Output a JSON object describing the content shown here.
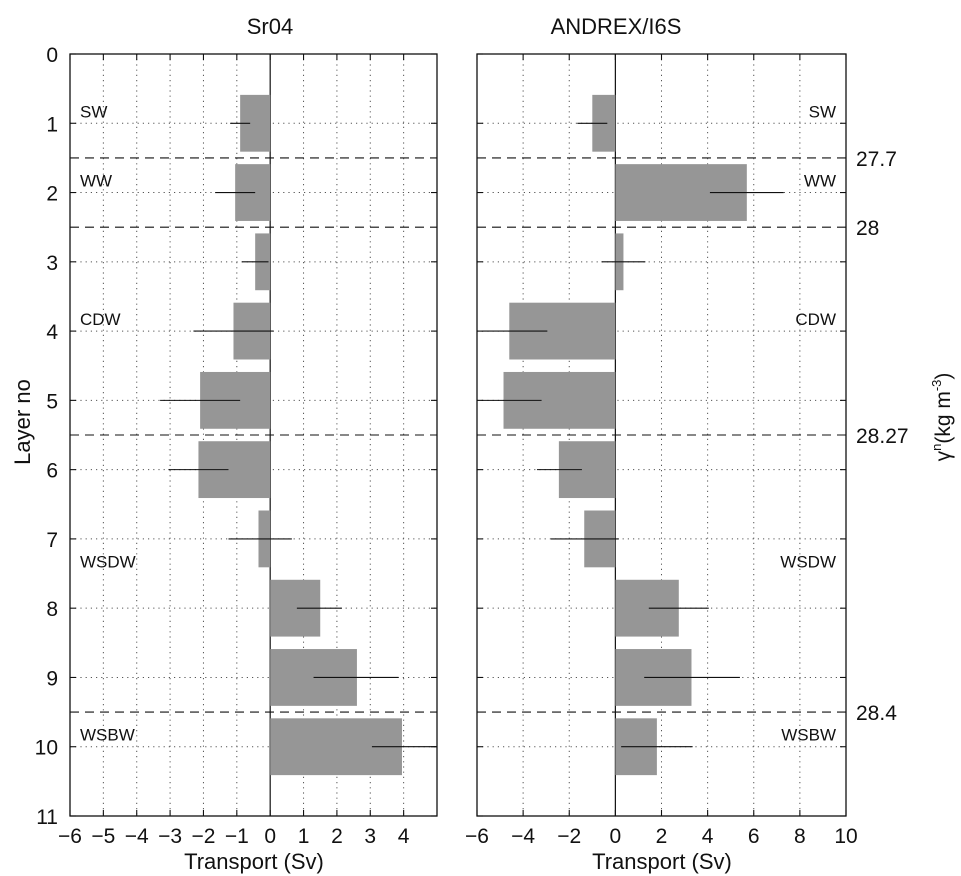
{
  "figure": {
    "ylabel": "Layer no",
    "right_label_prefix": "γ",
    "right_label_sup": "n",
    "right_label_text": "(kg m",
    "right_label_sup2": "-3",
    "right_label_close": ")"
  },
  "style": {
    "bar_color": "#969696",
    "axis_color": "#111111",
    "grid_color": "#555555"
  },
  "chart_data": [
    {
      "type": "bar",
      "orientation": "horizontal",
      "title": "Sr04",
      "xlabel": "Transport (Sv)",
      "ylabel": "Layer no",
      "xlim": [
        -6,
        5
      ],
      "xticks": [
        -6,
        -5,
        -4,
        -3,
        -2,
        -1,
        0,
        1,
        2,
        3,
        4
      ],
      "ylim": [
        0,
        11
      ],
      "yticks": [
        0,
        1,
        2,
        3,
        4,
        5,
        6,
        7,
        8,
        9,
        10,
        11
      ],
      "y_reversed": true,
      "grid": true,
      "layers": [
        1,
        2,
        3,
        4,
        5,
        6,
        7,
        8,
        9,
        10
      ],
      "values": [
        -0.9,
        -1.05,
        -0.45,
        -1.1,
        -2.1,
        -2.15,
        -0.35,
        1.5,
        2.6,
        3.95
      ],
      "error_ranges": [
        [
          -1.2,
          -0.6
        ],
        [
          -1.65,
          -0.45
        ],
        [
          -0.85,
          -0.05
        ],
        [
          -2.3,
          0.1
        ],
        [
          -3.3,
          -0.9
        ],
        [
          -3.05,
          -1.25
        ],
        [
          -1.25,
          0.65
        ],
        [
          0.8,
          2.15
        ],
        [
          1.3,
          3.85
        ],
        [
          3.05,
          5.0
        ]
      ],
      "water_mass_labels": [
        {
          "label": "SW",
          "layer": 1
        },
        {
          "label": "WW",
          "layer": 2
        },
        {
          "label": "CDW",
          "layer": 4
        },
        {
          "label": "WSDW",
          "layer": 7.5
        },
        {
          "label": "WSBW",
          "layer": 10
        }
      ],
      "dashed_boundaries": [
        1.5,
        2.5,
        5.5,
        9.5
      ]
    },
    {
      "type": "bar",
      "orientation": "horizontal",
      "title": "ANDREX/I6S",
      "xlabel": "Transport (Sv)",
      "xlim": [
        -6,
        10
      ],
      "xticks": [
        -6,
        -4,
        -2,
        0,
        2,
        4,
        6,
        8,
        10
      ],
      "ylim": [
        0,
        11
      ],
      "y_reversed": true,
      "grid": true,
      "layers": [
        1,
        2,
        3,
        4,
        5,
        6,
        7,
        8,
        9,
        10
      ],
      "values": [
        -1.0,
        5.7,
        0.35,
        -4.6,
        -4.85,
        -2.45,
        -1.35,
        2.75,
        3.3,
        1.8
      ],
      "error_ranges": [
        [
          -1.65,
          -0.35
        ],
        [
          4.1,
          7.3
        ],
        [
          -0.6,
          1.3
        ],
        [
          -5.8,
          -2.95
        ],
        [
          -5.8,
          -3.2
        ],
        [
          -3.4,
          -1.45
        ],
        [
          -2.8,
          0.15
        ],
        [
          1.45,
          4.05
        ],
        [
          1.25,
          5.4
        ],
        [
          0.25,
          3.35
        ]
      ],
      "water_mass_labels": [
        {
          "label": "SW",
          "layer": 1
        },
        {
          "label": "WW",
          "layer": 2
        },
        {
          "label": "CDW",
          "layer": 4
        },
        {
          "label": "WSDW",
          "layer": 7.5
        },
        {
          "label": "WSBW",
          "layer": 10
        }
      ],
      "dashed_boundaries": [
        1.5,
        2.5,
        5.5,
        9.5
      ],
      "boundary_density_labels": [
        {
          "label": "27.7",
          "layer": 1.5
        },
        {
          "label": "28",
          "layer": 2.5
        },
        {
          "label": "28.27",
          "layer": 5.5
        },
        {
          "label": "28.4",
          "layer": 9.5
        }
      ]
    }
  ]
}
